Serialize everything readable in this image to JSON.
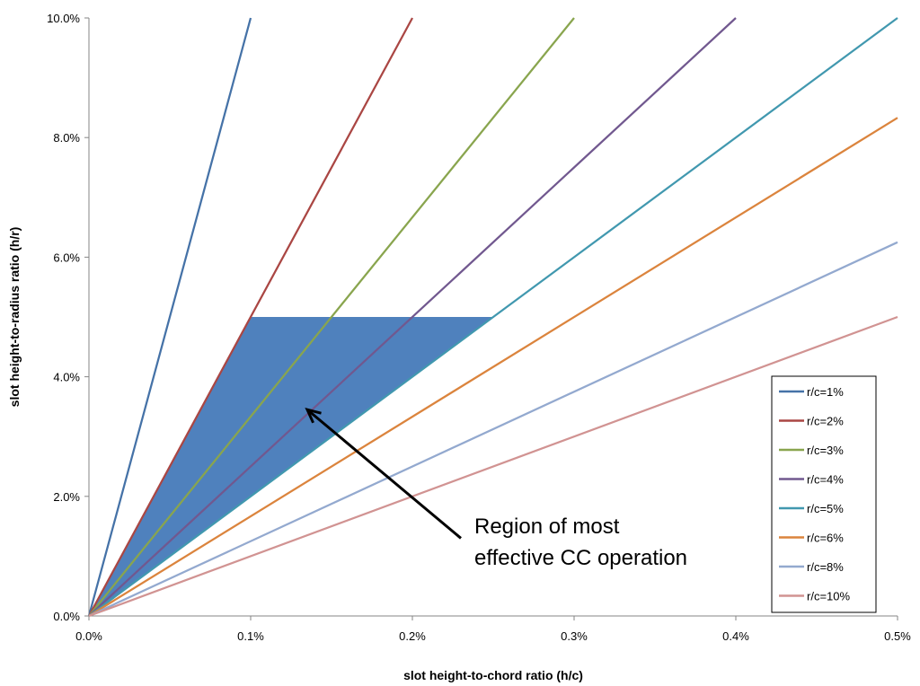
{
  "chart_data": {
    "type": "line",
    "title": "",
    "xlabel": "slot height-to-chord ratio (h/c)",
    "ylabel": "slot height-to-radius ratio (h/r)",
    "xlim": [
      0,
      0.5
    ],
    "ylim": [
      0,
      10
    ],
    "x_ticks": [
      0,
      0.1,
      0.2,
      0.3,
      0.4,
      0.5
    ],
    "y_ticks": [
      0,
      2,
      4,
      6,
      8,
      10
    ],
    "x_tick_labels": [
      "0.0%",
      "0.1%",
      "0.2%",
      "0.3%",
      "0.4%",
      "0.5%"
    ],
    "y_tick_labels": [
      "0.0%",
      "2.0%",
      "4.0%",
      "6.0%",
      "8.0%",
      "10.0%"
    ],
    "grid": false,
    "legend_position": "right",
    "series": [
      {
        "name": "r/c=1%",
        "color": "#4572A7",
        "x": [
          0,
          0.1
        ],
        "y": [
          0,
          10
        ]
      },
      {
        "name": "r/c=2%",
        "color": "#AA4643",
        "x": [
          0,
          0.2
        ],
        "y": [
          0,
          10
        ]
      },
      {
        "name": "r/c=3%",
        "color": "#89A54E",
        "x": [
          0,
          0.3
        ],
        "y": [
          0,
          10
        ]
      },
      {
        "name": "r/c=4%",
        "color": "#71588F",
        "x": [
          0,
          0.4
        ],
        "y": [
          0,
          10
        ]
      },
      {
        "name": "r/c=5%",
        "color": "#4198AF",
        "x": [
          0,
          0.5
        ],
        "y": [
          0,
          10
        ]
      },
      {
        "name": "r/c=6%",
        "color": "#DB843D",
        "x": [
          0,
          0.5
        ],
        "y": [
          0,
          8.33
        ]
      },
      {
        "name": "r/c=8%",
        "color": "#93A9CF",
        "x": [
          0,
          0.5
        ],
        "y": [
          0,
          6.25
        ]
      },
      {
        "name": "r/c=10%",
        "color": "#D19392",
        "x": [
          0,
          0.5
        ],
        "y": [
          0,
          5
        ]
      }
    ],
    "shaded_region": {
      "color": "#4F81BD",
      "points": [
        [
          0,
          0
        ],
        [
          0.1,
          5
        ],
        [
          0.25,
          5
        ]
      ]
    },
    "annotation": {
      "lines": [
        "Region of most",
        "effective CC operation"
      ],
      "arrow_from": [
        0.23,
        1.3
      ],
      "arrow_to": [
        0.135,
        3.45
      ]
    }
  }
}
